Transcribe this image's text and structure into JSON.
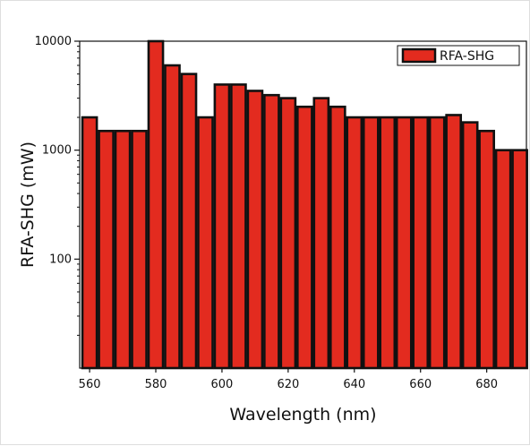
{
  "chart_data": {
    "type": "bar",
    "title": "",
    "xlabel": "Wavelength (nm)",
    "ylabel": "RFA-SHG (mW)",
    "xlim": [
      557,
      692
    ],
    "ylim": [
      10,
      10000
    ],
    "yscale": "log",
    "x_ticks": [
      560,
      580,
      600,
      620,
      640,
      660,
      680
    ],
    "y_ticks": [
      100,
      1000,
      10000
    ],
    "grid": false,
    "legend_position": "top-right",
    "bar_width": 5,
    "series": [
      {
        "name": "RFA-SHG",
        "color": "#e32b1f",
        "edge_color": "#111111",
        "x": [
          560,
          565,
          570,
          575,
          580,
          585,
          590,
          595,
          600,
          605,
          610,
          615,
          620,
          625,
          630,
          635,
          640,
          645,
          650,
          655,
          660,
          665,
          670,
          675,
          680,
          685,
          690
        ],
        "values": [
          2000,
          1500,
          1500,
          1500,
          10000,
          6000,
          5000,
          2000,
          4000,
          4000,
          3500,
          3200,
          3000,
          2500,
          3000,
          2500,
          2000,
          2000,
          2000,
          2000,
          2000,
          2000,
          2100,
          1800,
          1500,
          1000,
          1000
        ]
      }
    ]
  }
}
